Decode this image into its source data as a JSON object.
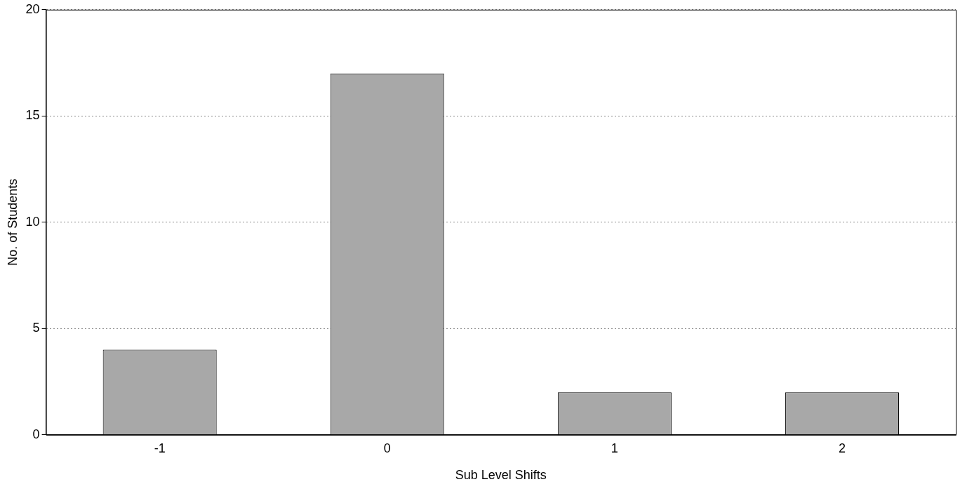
{
  "chart_data": {
    "type": "bar",
    "xlabel": "Sub Level Shifts",
    "ylabel": "No. of Students",
    "categories": [
      "-1",
      "0",
      "1",
      "2"
    ],
    "values": [
      4,
      17,
      2,
      2
    ],
    "color": "#a8a8a8",
    "ylim": [
      0,
      20
    ],
    "yticks": [
      0,
      5,
      10,
      15,
      20
    ],
    "grid": "y",
    "legend": false
  }
}
